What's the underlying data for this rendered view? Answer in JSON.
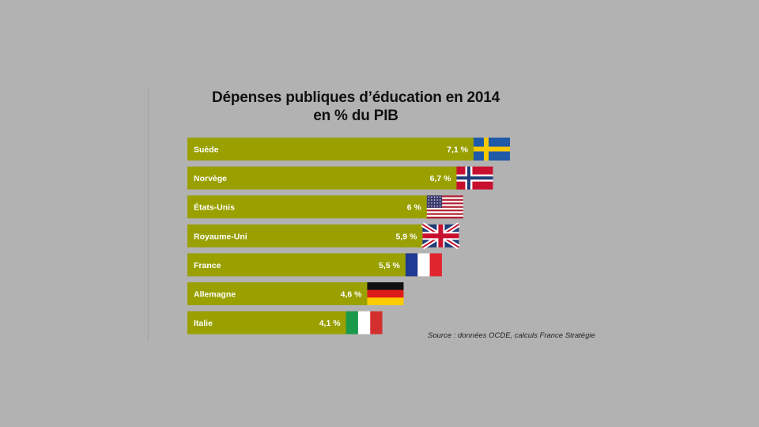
{
  "title": "Dépenses publiques d’éducation en 2014",
  "subtitle": "en % du PIB",
  "source": "Source : données OCDE, calculs France Stratégie",
  "colors": {
    "bar": "#99a000",
    "background": "#b2b2b2",
    "label": "#ffffff"
  },
  "chart_data": {
    "type": "bar",
    "orientation": "horizontal",
    "title": "Dépenses publiques d’éducation en 2014",
    "subtitle": "en % du PIB",
    "categories": [
      "Suède",
      "Norvège",
      "États-Unis",
      "Royaume-Uni",
      "France",
      "Allemagne",
      "Italie"
    ],
    "values": [
      7.1,
      6.7,
      6.0,
      5.9,
      5.5,
      4.6,
      4.1
    ],
    "value_labels": [
      "7,1 %",
      "6,7 %",
      "6 %",
      "5,9 %",
      "5,5 %",
      "4,6 %",
      "4,1 %"
    ],
    "flags": [
      "sweden-flag-icon",
      "norway-flag-icon",
      "usa-flag-icon",
      "uk-flag-icon",
      "france-flag-icon",
      "germany-flag-icon",
      "italy-flag-icon"
    ],
    "xlim": [
      0,
      7.1
    ],
    "grid": false,
    "legend": "none"
  }
}
